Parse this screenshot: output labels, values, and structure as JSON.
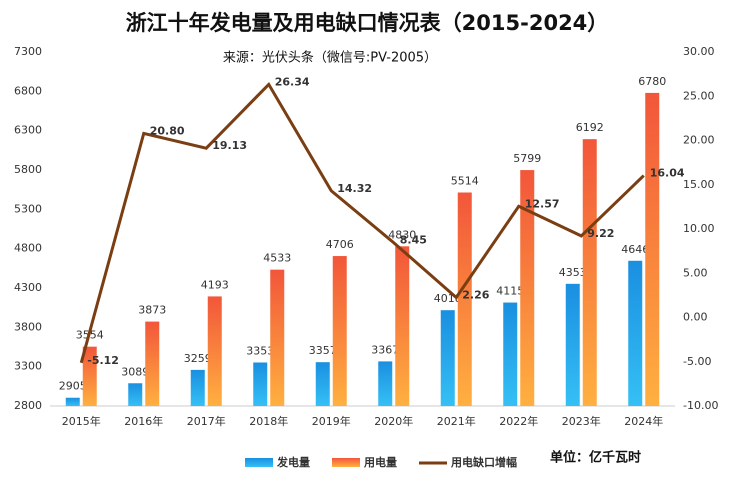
{
  "chart_data": {
    "type": "bar-line",
    "title": "浙江十年发电量及用电缺口情况表（2015-2024）",
    "subtitle": "来源：光伏头条（微信号:PV-2005）",
    "unit_note": "单位：亿千瓦时",
    "categories": [
      "2015年",
      "2016年",
      "2017年",
      "2018年",
      "2019年",
      "2020年",
      "2021年",
      "2022年",
      "2023年",
      "2024年"
    ],
    "series": [
      {
        "name": "发电量",
        "color": "#1a8fe0",
        "type": "bar",
        "values": [
          2905,
          3089,
          3259,
          3353,
          3357,
          3367,
          4018,
          4115,
          4353,
          4646
        ]
      },
      {
        "name": "用电量",
        "color": "#f2563a",
        "type": "bar",
        "values": [
          3554,
          3873,
          4193,
          4533,
          4706,
          4830,
          5514,
          5799,
          6192,
          6780
        ]
      },
      {
        "name": "用电缺口增幅",
        "color": "#7a3e12",
        "type": "line",
        "axis": "y2",
        "values": [
          -5.12,
          20.8,
          19.13,
          26.34,
          14.32,
          8.45,
          2.26,
          12.57,
          9.22,
          16.04
        ],
        "value_labels": [
          "-5.12",
          "20.80",
          "19.13",
          "26.34",
          "14.32",
          "8.45",
          "2.26",
          "12.57",
          "9.22",
          "16.04"
        ]
      }
    ],
    "ylim": [
      2800,
      7300
    ],
    "yticks": [
      2800,
      3300,
      3800,
      4300,
      4800,
      5300,
      5800,
      6300,
      6800,
      7300
    ],
    "y2lim": [
      -10,
      30
    ],
    "y2ticks": [
      {
        "value": -10,
        "label": "-10.00"
      },
      {
        "value": -5,
        "label": "-5.00"
      },
      {
        "value": 0,
        "label": "0.00"
      },
      {
        "value": 5,
        "label": "5.00"
      },
      {
        "value": 10,
        "label": "10.00"
      },
      {
        "value": 15,
        "label": "15.00"
      },
      {
        "value": 20,
        "label": "20.00"
      },
      {
        "value": 25,
        "label": "25.00"
      },
      {
        "value": 30,
        "label": "30.00"
      }
    ],
    "grid": false
  }
}
